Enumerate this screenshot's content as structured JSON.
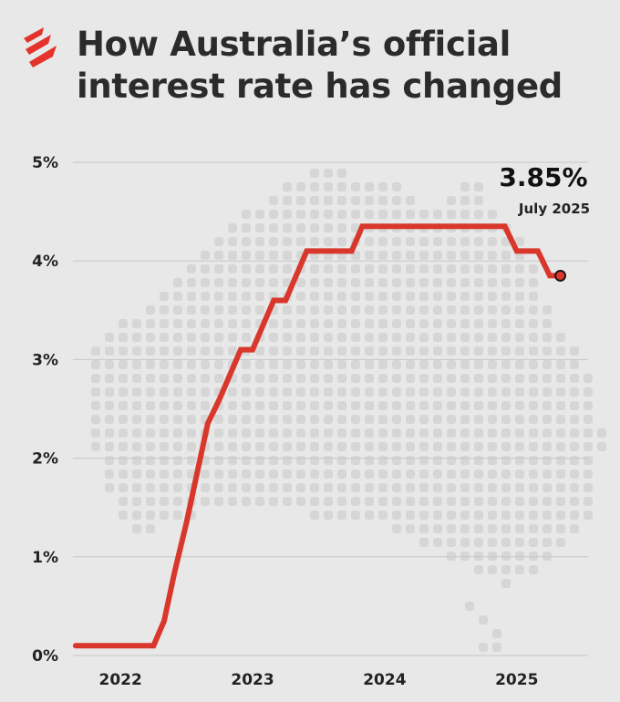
{
  "header": {
    "title_line1": "How Australia’s official",
    "title_line2": "interest rate has changed"
  },
  "colors": {
    "background": "#e8e8e8",
    "line": "#d9372b",
    "grid": "#c6c6c6",
    "map_dots": "#d6d6d6",
    "logo": "#e4332a"
  },
  "icons": {
    "logo": "sbs-logo-icon",
    "background": "australia-map-dots"
  },
  "chart_data": {
    "type": "line",
    "title": "How Australia’s official interest rate has changed",
    "xlabel": "",
    "ylabel": "",
    "ylim": [
      0,
      5
    ],
    "xlim": [
      2021.65,
      2025.55
    ],
    "y_ticks": [
      0,
      1,
      2,
      3,
      4,
      5
    ],
    "y_tick_labels": [
      "0%",
      "1%",
      "2%",
      "3%",
      "4%",
      "5%"
    ],
    "x_ticks": [
      2022,
      2023,
      2024,
      2025
    ],
    "x_tick_labels": [
      "2022",
      "2023",
      "2024",
      "2025"
    ],
    "grid": true,
    "series": [
      {
        "values": [
          [
            2021.67,
            0.1
          ],
          [
            2022.26,
            0.1
          ],
          [
            2022.34,
            0.35
          ],
          [
            2022.42,
            0.85
          ],
          [
            2022.51,
            1.35
          ],
          [
            2022.59,
            1.85
          ],
          [
            2022.67,
            2.35
          ],
          [
            2022.76,
            2.6
          ],
          [
            2022.84,
            2.85
          ],
          [
            2022.92,
            3.1
          ],
          [
            2023.01,
            3.1
          ],
          [
            2023.09,
            3.35
          ],
          [
            2023.17,
            3.6
          ],
          [
            2023.26,
            3.6
          ],
          [
            2023.34,
            3.85
          ],
          [
            2023.42,
            4.1
          ],
          [
            2023.59,
            4.1
          ],
          [
            2023.76,
            4.1
          ],
          [
            2023.84,
            4.35
          ],
          [
            2024.59,
            4.35
          ],
          [
            2024.92,
            4.35
          ],
          [
            2025.01,
            4.1
          ],
          [
            2025.17,
            4.1
          ],
          [
            2025.26,
            3.85
          ],
          [
            2025.34,
            3.85
          ]
        ]
      }
    ],
    "callout": {
      "value": "3.85%",
      "date": "July 2025",
      "x": 2025.34,
      "y": 3.85
    }
  }
}
